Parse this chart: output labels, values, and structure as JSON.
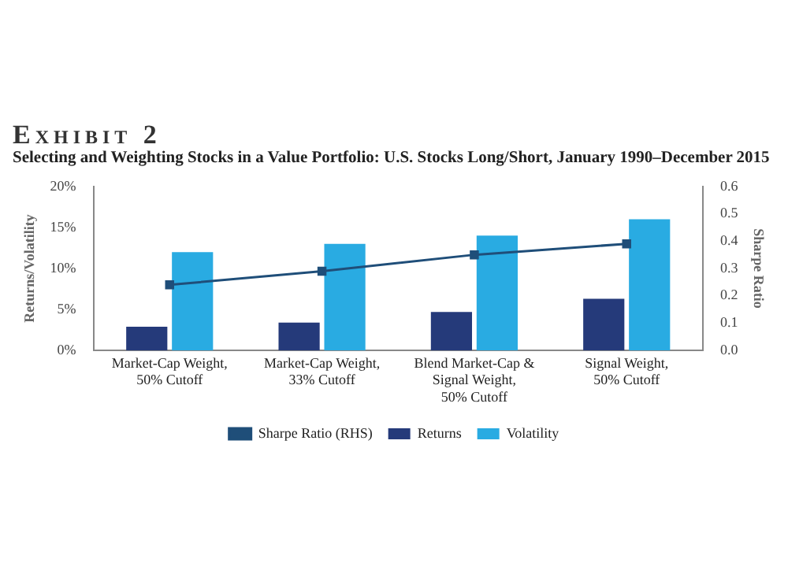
{
  "chart_data": {
    "type": "bar",
    "title": "Exhibit 2",
    "subtitle": "Selecting and Weighting Stocks in a Value Portfolio: U.S. Stocks Long/Short, January 1990–December 2015",
    "categories": [
      [
        "Market-Cap Weight,",
        "50% Cutoff"
      ],
      [
        "Market-Cap Weight,",
        "33% Cutoff"
      ],
      [
        "Blend Market-Cap &",
        "Signal Weight,",
        "50% Cutoff"
      ],
      [
        "Signal Weight,",
        "50% Cutoff"
      ]
    ],
    "series": [
      {
        "name": "Returns",
        "color": "#253a7a",
        "values": [
          2.9,
          3.4,
          4.7,
          6.3
        ]
      },
      {
        "name": "Volatility",
        "color": "#29abe2",
        "values": [
          12,
          13,
          14,
          16
        ]
      },
      {
        "name": "Sharpe Ratio (RHS)",
        "type": "line",
        "axis": "y2",
        "color": "#1f4e79",
        "values": [
          0.24,
          0.29,
          0.35,
          0.39
        ]
      }
    ],
    "ylabel": "Returns/Volatility",
    "y2label": "Sharpe Ratio",
    "ylim": [
      0,
      20
    ],
    "yticks": [
      {
        "value": 0,
        "label": "0%"
      },
      {
        "value": 5,
        "label": "5%"
      },
      {
        "value": 10,
        "label": "10%"
      },
      {
        "value": 15,
        "label": "15%"
      },
      {
        "value": 20,
        "label": "20%"
      }
    ],
    "y2lim": [
      0,
      0.6
    ],
    "y2ticks": [
      {
        "value": 0,
        "label": "0.0"
      },
      {
        "value": 0.1,
        "label": "0.1"
      },
      {
        "value": 0.2,
        "label": "0.2"
      },
      {
        "value": 0.3,
        "label": "0.3"
      },
      {
        "value": 0.4,
        "label": "0.4"
      },
      {
        "value": 0.5,
        "label": "0.5"
      },
      {
        "value": 0.6,
        "label": "0.6"
      }
    ],
    "legend": "bottom",
    "grid": false,
    "marker": "square"
  }
}
